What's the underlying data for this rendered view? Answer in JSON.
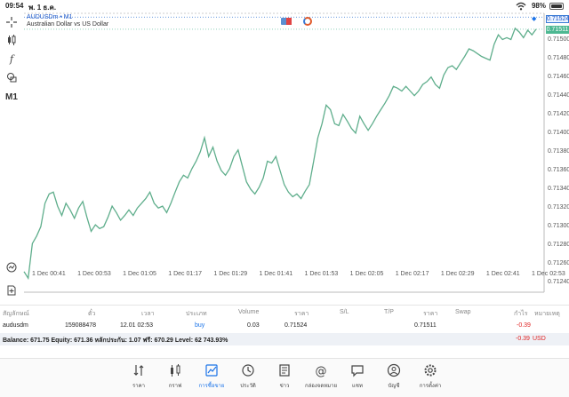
{
  "status_bar": {
    "time": "09:54",
    "date": "พ. 1 ธ.ค.",
    "battery": "98%"
  },
  "symbol": {
    "name": "AUDUSDm • M1",
    "description": "Australian Dollar vs US Dollar"
  },
  "timeframe": "M1",
  "ask_price": "0.71524",
  "bid_price": "0.71511",
  "price_axis": [
    "0.71500",
    "0.71480",
    "0.71460",
    "0.71440",
    "0.71420",
    "0.71400",
    "0.71380",
    "0.71360",
    "0.71340",
    "0.71320",
    "0.71300",
    "0.71280",
    "0.71260",
    "0.71240"
  ],
  "time_axis": [
    "1 Dec 00:41",
    "1 Dec 00:53",
    "1 Dec 01:05",
    "1 Dec 01:17",
    "1 Dec 01:29",
    "1 Dec 01:41",
    "1 Dec 01:53",
    "1 Dec 02:05",
    "1 Dec 02:17",
    "1 Dec 02:29",
    "1 Dec 02:41",
    "1 Dec 02:53"
  ],
  "colors": {
    "line": "#5fae8c",
    "ask": "#3a7bd5",
    "bid": "#4db892",
    "accent": "#1a73e8",
    "loss": "#e02424"
  },
  "chart_data": {
    "type": "line",
    "series": [
      {
        "values": [
          0.71252,
          0.71245,
          0.71282,
          0.7129,
          0.713,
          0.71325,
          0.71335,
          0.71337,
          0.71322,
          0.71312,
          0.71325,
          0.71318,
          0.71309,
          0.7132,
          0.71327,
          0.7131,
          0.71295,
          0.71302,
          0.71298,
          0.713,
          0.7131,
          0.71322,
          0.71315,
          0.71307,
          0.71312,
          0.71318,
          0.71312,
          0.7132,
          0.71325,
          0.7133,
          0.71337,
          0.71325,
          0.7132,
          0.71322,
          0.71315,
          0.71325,
          0.71337,
          0.71348,
          0.71355,
          0.71352,
          0.71362,
          0.7137,
          0.7138,
          0.71395,
          0.71375,
          0.71385,
          0.7137,
          0.7136,
          0.71355,
          0.71362,
          0.71375,
          0.71382,
          0.71365,
          0.71348,
          0.7134,
          0.71335,
          0.71342,
          0.71352,
          0.7137,
          0.71368,
          0.71375,
          0.7136,
          0.71345,
          0.71337,
          0.71332,
          0.71335,
          0.7133,
          0.71338,
          0.71345,
          0.7137,
          0.71395,
          0.7141,
          0.7143,
          0.71425,
          0.7141,
          0.71408,
          0.7142,
          0.71413,
          0.71405,
          0.714,
          0.71418,
          0.7141,
          0.71403,
          0.7141,
          0.71418,
          0.71425,
          0.71432,
          0.7144,
          0.7145,
          0.71448,
          0.71445,
          0.7145,
          0.71445,
          0.7144,
          0.71445,
          0.71452,
          0.71455,
          0.7146,
          0.71452,
          0.71448,
          0.71462,
          0.7147,
          0.71472,
          0.71468,
          0.71475,
          0.71482,
          0.7149,
          0.71488,
          0.71485,
          0.71482,
          0.7148,
          0.71478,
          0.71495,
          0.71505,
          0.715,
          0.71502,
          0.715,
          0.71512,
          0.71508,
          0.71502,
          0.7151,
          0.71505,
          0.71511
        ]
      }
    ],
    "ylim": [
      0.7123,
      0.71528
    ],
    "grid": false
  },
  "table": {
    "headers": [
      "สัญลักษณ์",
      "ตั๋ว",
      "เวลา",
      "ประเภท",
      "Volume",
      "ราคา",
      "S/L",
      "T/P",
      "ราคา",
      "Swap",
      "กำไร",
      "หมายเหตุ"
    ],
    "row": {
      "symbol": "audusdm",
      "ticket": "159088478",
      "time": "12.01 02:53",
      "type": "buy",
      "volume": "0.03",
      "open_price": "0.71524",
      "current_price": "0.71511",
      "profit": "-0.39"
    }
  },
  "balance": {
    "text": "Balance: 671.75 Equity: 671.36 หลักประกัน: 1.07 ฟรี: 670.29 Level: 62 743.93%",
    "profit": "-0.39",
    "currency": "USD"
  },
  "nav": [
    {
      "label": "ราคา",
      "icon": "quotes-icon"
    },
    {
      "label": "กราฟ",
      "icon": "chart-candles-icon"
    },
    {
      "label": "การซื้อขาย",
      "icon": "trade-icon",
      "active": true
    },
    {
      "label": "ประวัติ",
      "icon": "history-icon"
    },
    {
      "label": "ข่าว",
      "icon": "news-icon"
    },
    {
      "label": "กล่องจดหมาย",
      "icon": "mailbox-icon"
    },
    {
      "label": "แชท",
      "icon": "chat-icon"
    },
    {
      "label": "บัญชี",
      "icon": "account-icon"
    },
    {
      "label": "การตั้งค่า",
      "icon": "settings-icon"
    }
  ]
}
